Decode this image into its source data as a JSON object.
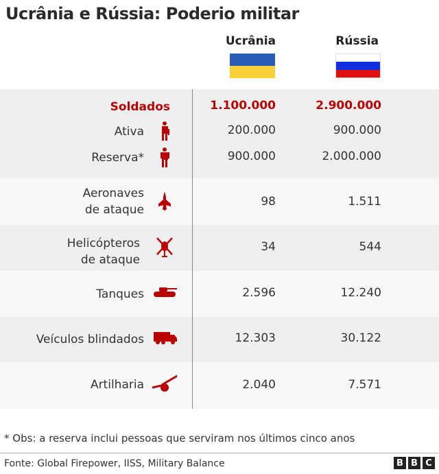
{
  "title": "Ucrânia e Rússia: Poderio militar",
  "colors": {
    "accent": "#b80000",
    "row_shaded": "#efefef",
    "row_light": "#f8f8f8"
  },
  "columns": {
    "ukraine": "Ucrânia",
    "russia": "Rússia"
  },
  "chart_data": {
    "type": "table",
    "columns": [
      "",
      "Ucrânia",
      "Rússia"
    ],
    "rows": [
      {
        "label": "Soldados",
        "ukraine": "1.100.000",
        "russia": "2.900.000",
        "icon": ""
      },
      {
        "label": "Ativa",
        "ukraine": "200.000",
        "russia": "900.000",
        "icon": "soldier-icon"
      },
      {
        "label": "Reserva*",
        "ukraine": "900.000",
        "russia": "2.000.000",
        "icon": "person-icon"
      },
      {
        "label": "Aeronaves de ataque",
        "ukraine": "98",
        "russia": "1.511",
        "icon": "fighter-jet-icon"
      },
      {
        "label": "Helicópteros de ataque",
        "ukraine": "34",
        "russia": "544",
        "icon": "helicopter-icon"
      },
      {
        "label": "Tanques",
        "ukraine": "2.596",
        "russia": "12.240",
        "icon": "tank-icon"
      },
      {
        "label": "Veículos blindados",
        "ukraine": "12.303",
        "russia": "30.122",
        "icon": "armored-vehicle-icon"
      },
      {
        "label": "Artilharia",
        "ukraine": "2.040",
        "russia": "7.571",
        "icon": "artillery-icon"
      }
    ]
  },
  "labels": {
    "aircraft_1": "Aeronaves",
    "aircraft_2": "de ataque",
    "heli_1": "Helicópteros",
    "heli_2": "de ataque"
  },
  "note": "* Obs: a reserva inclui pessoas que serviram nos últimos cinco anos",
  "source": "Fonte: Global Firepower, IISS, Military Balance",
  "logo": [
    "B",
    "B",
    "C"
  ]
}
